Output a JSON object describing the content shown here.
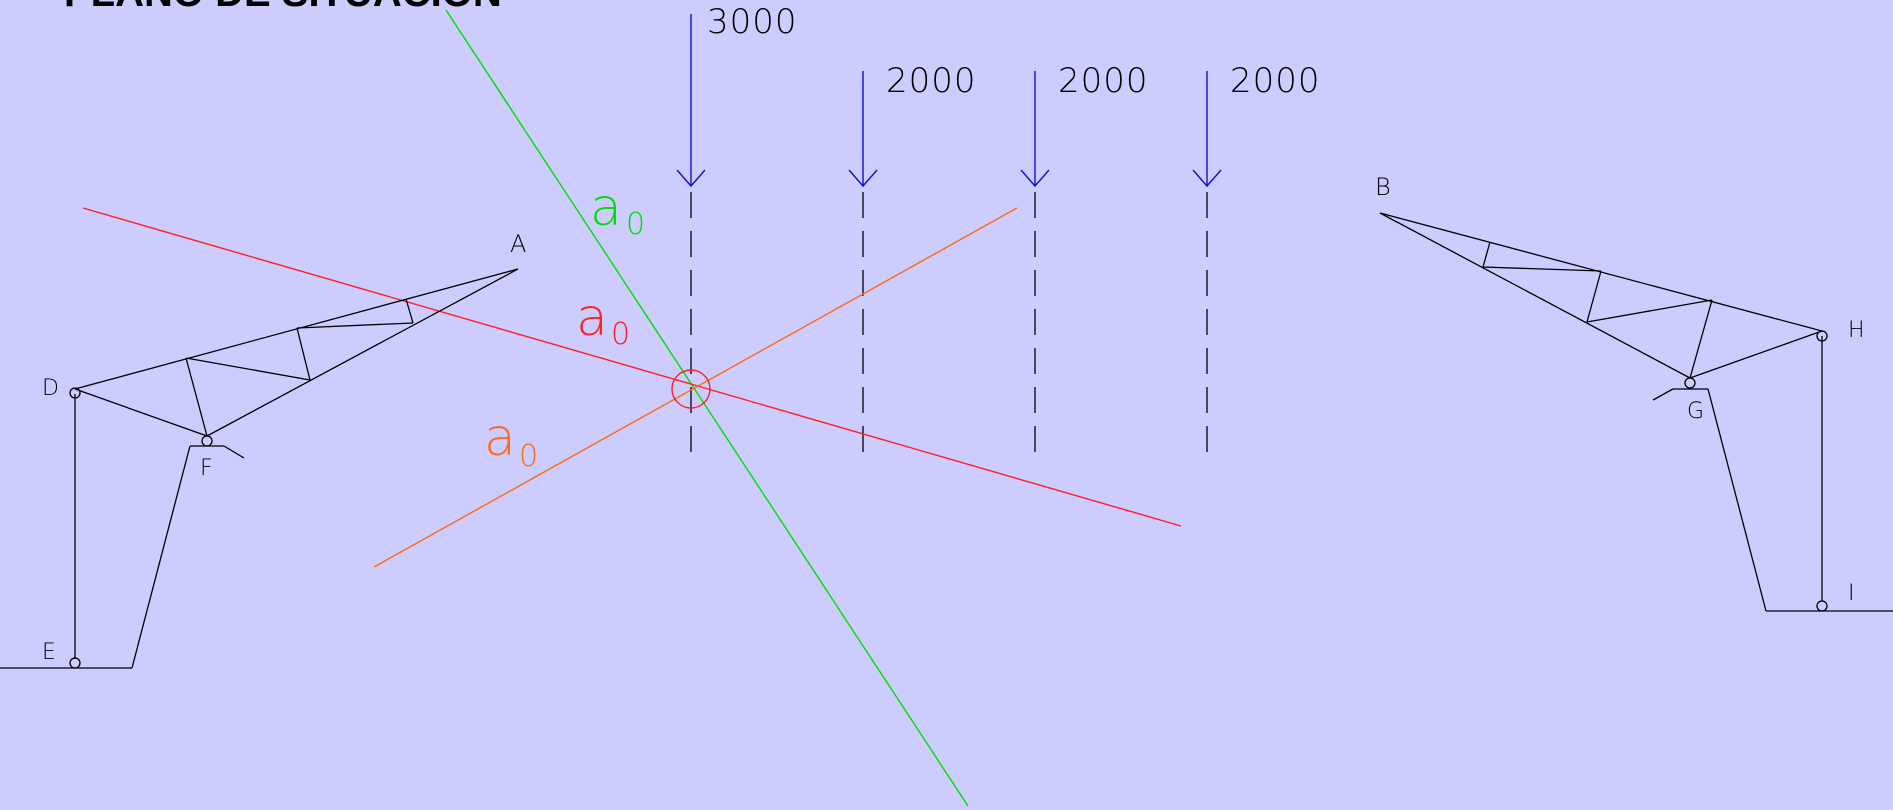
{
  "title": "PLANO DE SITUACION",
  "loads": [
    {
      "label": "3000"
    },
    {
      "label": "2000"
    },
    {
      "label": "2000"
    },
    {
      "label": "2000"
    }
  ],
  "points": {
    "A": "A",
    "B": "B",
    "D": "D",
    "E": "E",
    "F": "F",
    "G": "G",
    "H": "H",
    "I": "I"
  },
  "angle_labels": [
    {
      "main": "a",
      "sub": "0",
      "color": "#00dd00"
    },
    {
      "main": "a",
      "sub": "0",
      "color": "#ff2020"
    },
    {
      "main": "a",
      "sub": "0",
      "color": "#ff6a10"
    }
  ],
  "colors": {
    "background": "#ccccff",
    "structure": "#000000",
    "load_arrows": "#1010cc",
    "line_green": "#00dd00",
    "line_red": "#ff2020",
    "line_orange": "#ff6a10"
  }
}
